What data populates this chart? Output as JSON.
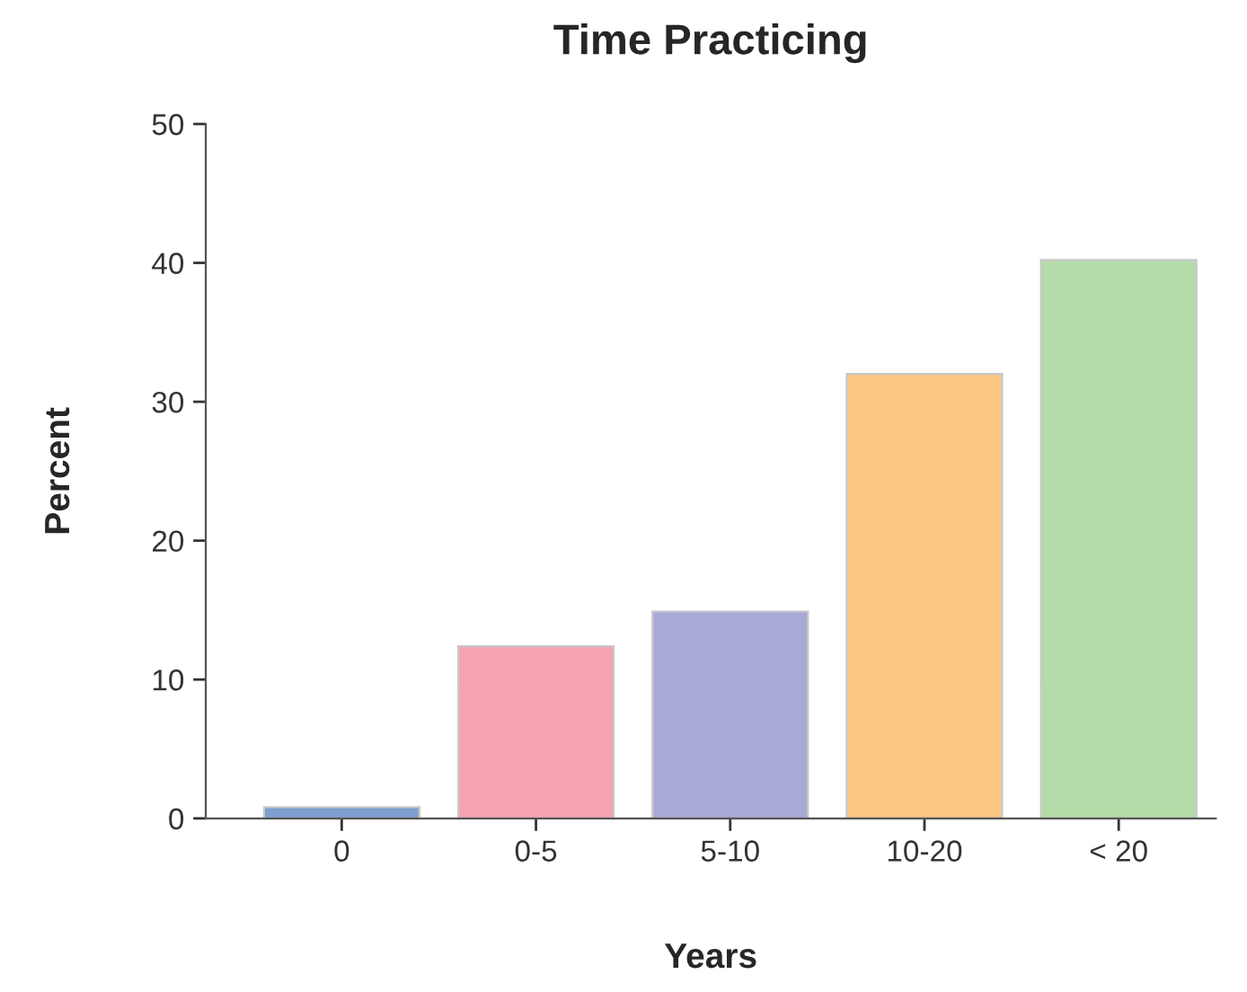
{
  "chart_data": {
    "type": "bar",
    "title": "Time Practicing",
    "xlabel": "Years",
    "ylabel": "Percent",
    "categories": [
      "0",
      "0-5",
      "5-10",
      "10-20",
      "< 20"
    ],
    "values": [
      0.8,
      12.4,
      14.9,
      32.0,
      40.2
    ],
    "colors": [
      "#7f9fd0",
      "#f5a3b2",
      "#a9a9d8",
      "#fbc784",
      "#b5dca8"
    ],
    "ylim": [
      0,
      50
    ],
    "yticks": [
      0,
      10,
      20,
      30,
      40,
      50
    ],
    "grid": false,
    "legend": false
  }
}
